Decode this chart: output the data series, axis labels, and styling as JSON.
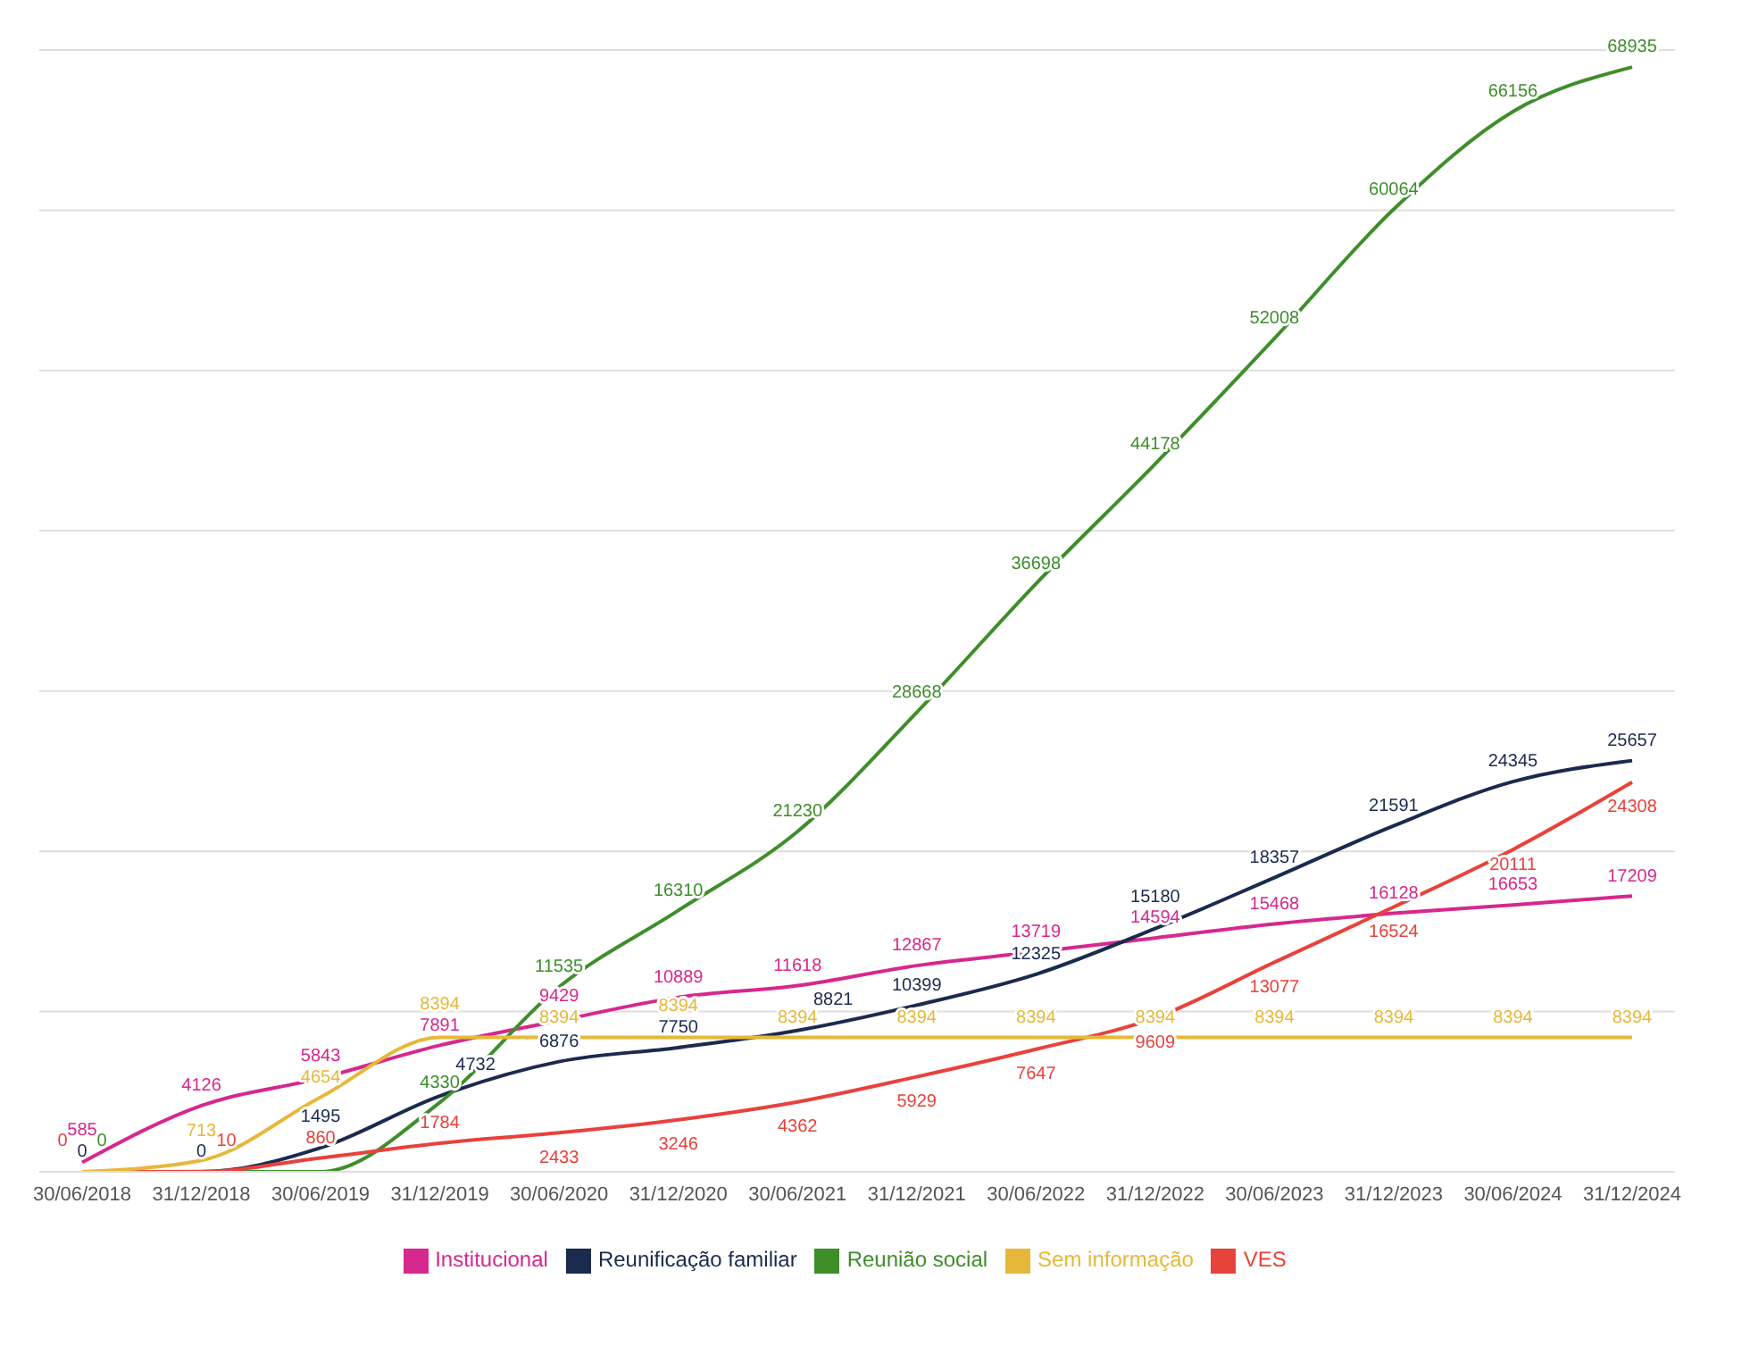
{
  "chart_data": {
    "type": "line",
    "categories": [
      "30/06/2018",
      "31/12/2018",
      "30/06/2019",
      "31/12/2019",
      "30/06/2020",
      "31/12/2020",
      "30/06/2021",
      "31/12/2021",
      "30/06/2022",
      "31/12/2022",
      "30/06/2023",
      "31/12/2023",
      "30/06/2024",
      "31/12/2024"
    ],
    "series": [
      {
        "name": "Institucional",
        "color": "#d6288e",
        "values": [
          585,
          4126,
          5843,
          7891,
          9429,
          10889,
          11618,
          12867,
          13719,
          14594,
          15468,
          16128,
          16653,
          17209
        ],
        "value_labels": [
          "585",
          "4126",
          "5843",
          "7891",
          "9429",
          "10889",
          "11618",
          "12867",
          "13719",
          "14594",
          "15468",
          "16128",
          "16653",
          "17209"
        ]
      },
      {
        "name": "Reunificação familiar",
        "color": "#1b2a4e",
        "values": [
          0,
          0,
          1495,
          4732,
          6876,
          7750,
          8821,
          10399,
          12325,
          15180,
          18357,
          21591,
          24345,
          25657
        ],
        "value_labels": [
          "0",
          "0",
          "1495",
          "4732",
          "6876",
          "7750",
          "8821",
          "10399",
          "12325",
          "15180",
          "18357",
          "21591",
          "24345",
          "25657"
        ]
      },
      {
        "name": "Reunião social",
        "color": "#3e8e2a",
        "values": [
          0,
          0,
          0,
          4330,
          11535,
          16310,
          21230,
          28668,
          36698,
          44178,
          52008,
          60064,
          66156,
          68935
        ],
        "value_labels": [
          "0",
          null,
          null,
          "4330",
          "11535",
          "16310",
          "21230",
          "28668",
          "36698",
          "44178",
          "52008",
          "60064",
          "66156",
          "68935"
        ]
      },
      {
        "name": "VES",
        "color": "#e8423c",
        "values": [
          0,
          10,
          860,
          1784,
          2433,
          3246,
          4362,
          5929,
          7647,
          9609,
          13077,
          16524,
          20111,
          24308
        ],
        "value_labels": [
          "0",
          "10",
          "860",
          "1784",
          "2433",
          "3246",
          "4362",
          "5929",
          "7647",
          "9609",
          "13077",
          "16524",
          "20111",
          "24308"
        ]
      },
      {
        "name": "Sem informação",
        "color": "#e6b83a",
        "values": [
          0,
          713,
          4654,
          8394,
          8394,
          8394,
          8394,
          8394,
          8394,
          8394,
          8394,
          8394,
          8394,
          8394
        ],
        "value_labels": [
          null,
          "713",
          "4654",
          "8394",
          "8394",
          "8394",
          "8394",
          "8394",
          "8394",
          "8394",
          "8394",
          "8394",
          "8394",
          "8394"
        ]
      }
    ],
    "ylim": [
      0,
      70000
    ],
    "yticks": [
      0,
      10000,
      20000,
      30000,
      40000,
      50000,
      60000,
      70000
    ],
    "tick_labels": "x",
    "grid": "y",
    "legend": "bottom",
    "marker": "none",
    "line_style": "solid"
  }
}
